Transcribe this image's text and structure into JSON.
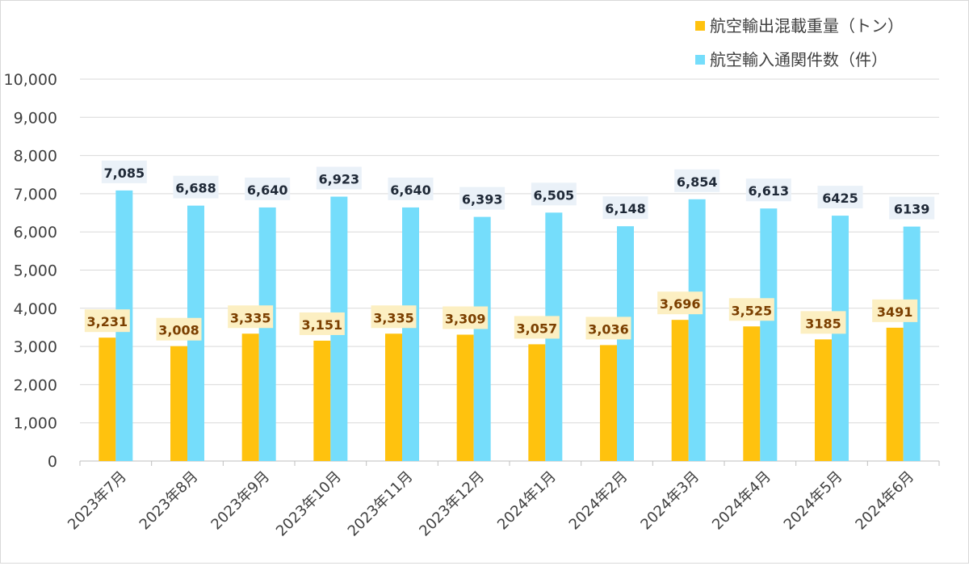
{
  "chart_data": {
    "type": "bar",
    "categories": [
      "2023年7月",
      "2023年8月",
      "2023年9月",
      "2023年10月",
      "2023年11月",
      "2023年12月",
      "2024年1月",
      "2024年2月",
      "2024年3月",
      "2024年4月",
      "2024年5月",
      "2024年6月"
    ],
    "series": [
      {
        "name": "航空輸出混載重量（トン）",
        "color": "#FFC20E",
        "label_bg": "#FCEFC2",
        "label_color": "#7B3F00",
        "values": [
          3231,
          3008,
          3335,
          3151,
          3335,
          3309,
          3057,
          3036,
          3696,
          3525,
          3185,
          3491
        ],
        "labels": [
          "3,231",
          "3,008",
          "3,335",
          "3,151",
          "3,335",
          "3,309",
          "3,057",
          "3,036",
          "3,696",
          "3,525",
          "3185",
          "3491"
        ]
      },
      {
        "name": "航空輸入通関件数（件）",
        "color": "#75DDFB",
        "label_bg": "#EAF1F8",
        "label_color": "#1F2937",
        "values": [
          7085,
          6688,
          6640,
          6923,
          6640,
          6393,
          6505,
          6148,
          6854,
          6613,
          6425,
          6139
        ],
        "labels": [
          "7,085",
          "6,688",
          "6,640",
          "6,923",
          "6,640",
          "6,393",
          "6,505",
          "6,148",
          "6,854",
          "6,613",
          "6425",
          "6139"
        ]
      }
    ],
    "ylim": [
      0,
      10000
    ],
    "yticks": [
      0,
      1000,
      2000,
      3000,
      4000,
      5000,
      6000,
      7000,
      8000,
      9000,
      10000
    ],
    "ytick_labels": [
      "0",
      "1,000",
      "2,000",
      "3,000",
      "4,000",
      "5,000",
      "6,000",
      "7,000",
      "8,000",
      "9,000",
      "10,000"
    ],
    "grid": true,
    "legend_position": "top-right",
    "title": "",
    "xlabel": "",
    "ylabel": ""
  }
}
